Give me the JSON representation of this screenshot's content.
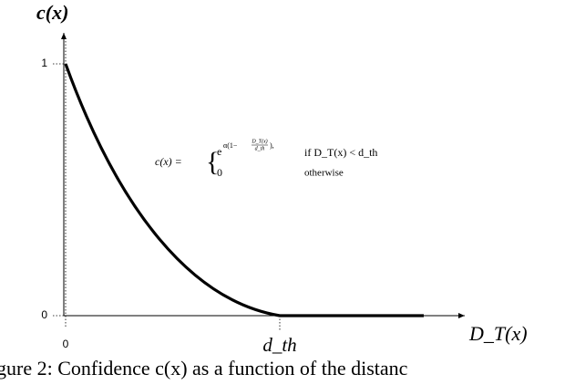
{
  "figure": {
    "y_axis_label": "c(x)",
    "x_axis_label": "D_T(x)",
    "y_ticks": [
      "1",
      "0"
    ],
    "x_ticks": [
      "0",
      "d_th"
    ],
    "formula": {
      "lhs": "c(x) =",
      "case1_base": "e",
      "case1_exponent": "α(1−",
      "case1_numerator": "D_T(x)",
      "case1_denominator": "d_th",
      "case1_close": "),",
      "case1_condition": "if  D_T(x) < d_th",
      "case2_value": "0",
      "case2_condition": "otherwise"
    },
    "caption": "gure 2:  Confidence c(x) as a function of the distanc"
  }
}
